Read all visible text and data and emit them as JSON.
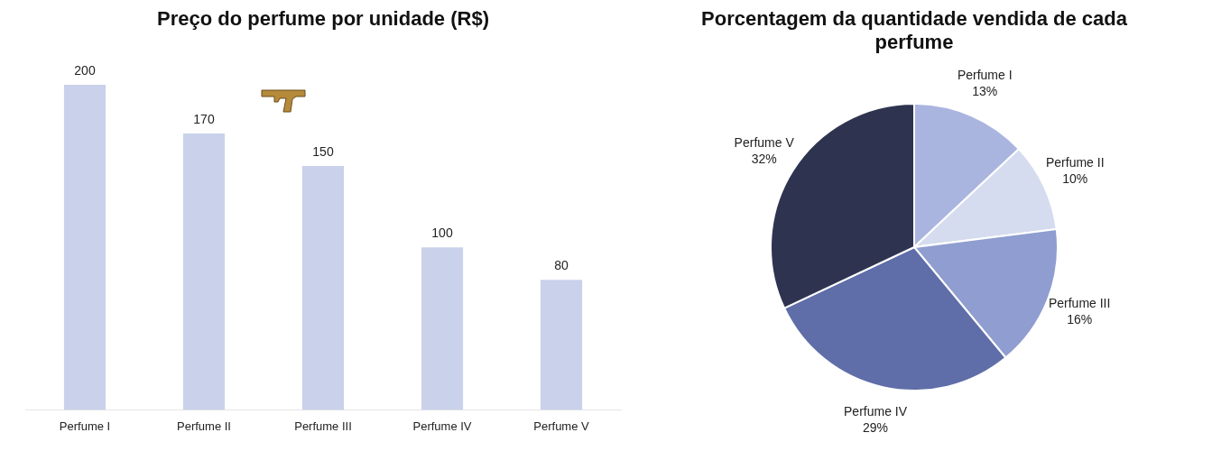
{
  "chart_data": [
    {
      "type": "bar",
      "title": "Preço do perfume por unidade (R$)",
      "categories": [
        "Perfume I",
        "Perfume II",
        "Perfume III",
        "Perfume IV",
        "Perfume V"
      ],
      "values": [
        200,
        170,
        150,
        100,
        80
      ],
      "color": "#c9d2ea",
      "data_labels": true,
      "tick_labels": "x",
      "grid": false,
      "legend": false
    },
    {
      "type": "pie",
      "title": "Porcentagem da quantidade vendida de cada perfume",
      "categories": [
        "Perfume I",
        "Perfume II",
        "Perfume III",
        "Perfume IV",
        "Perfume V"
      ],
      "values": [
        13,
        10,
        16,
        29,
        32
      ],
      "colors": [
        "#aab5df",
        "#d6dcef",
        "#8f9dd0",
        "#5f6ea8",
        "#2e3450"
      ],
      "value_labels": [
        "13%",
        "10%",
        "16%",
        "29%",
        "32%"
      ],
      "legend": false
    }
  ]
}
